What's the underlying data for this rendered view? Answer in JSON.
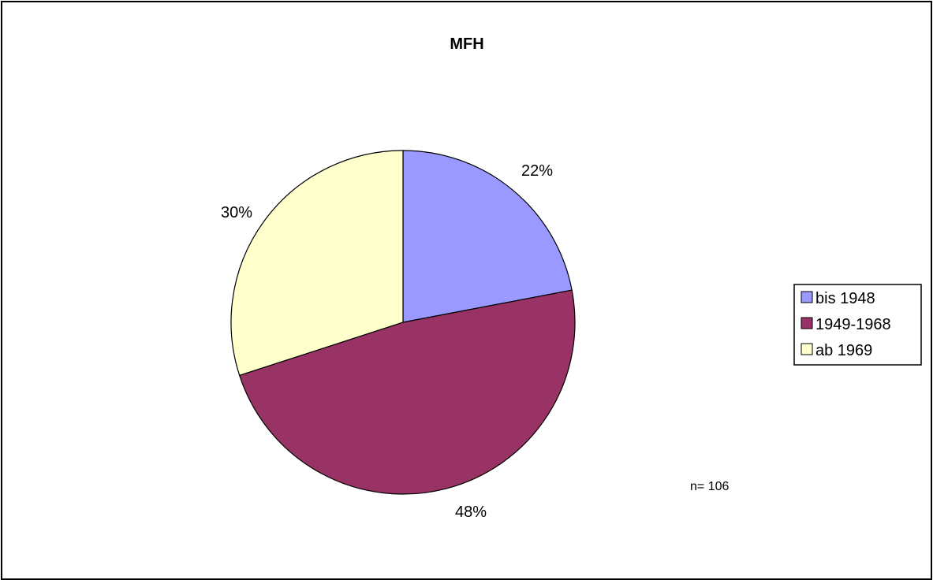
{
  "chart_data": {
    "type": "pie",
    "title": "MFH",
    "categories": [
      "bis 1948",
      "1949-1968",
      "ab 1969"
    ],
    "values": [
      22,
      48,
      30
    ],
    "labels": [
      "22%",
      "48%",
      "30%"
    ],
    "colors": [
      "#9999ff",
      "#993366",
      "#ffffcc"
    ],
    "legend_position": "right",
    "note": "n= 106"
  }
}
